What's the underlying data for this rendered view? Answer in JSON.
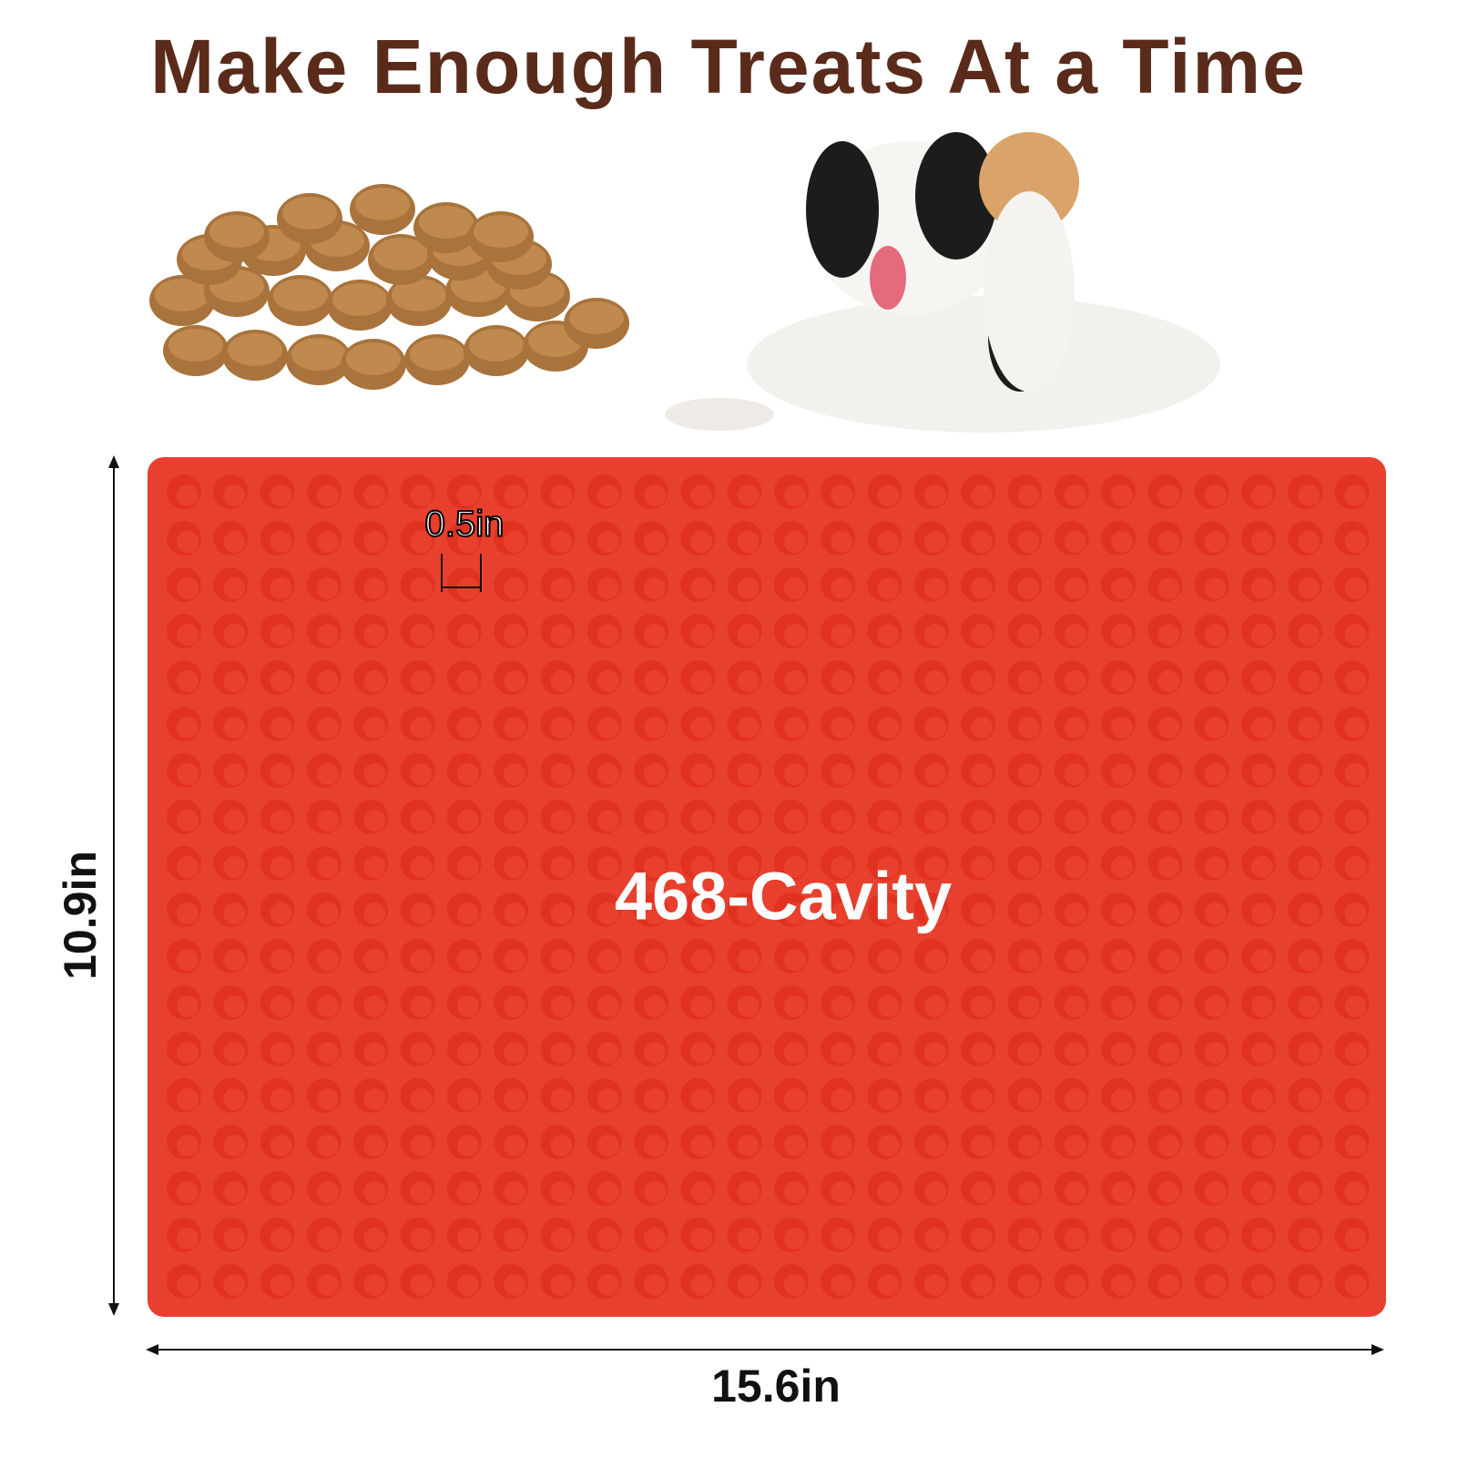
{
  "title": "Make Enough Treats At a Time",
  "cavity_label": "468-Cavity",
  "cavity_size": "0.5in",
  "height_label": "10.9in",
  "width_label": "15.6in"
}
